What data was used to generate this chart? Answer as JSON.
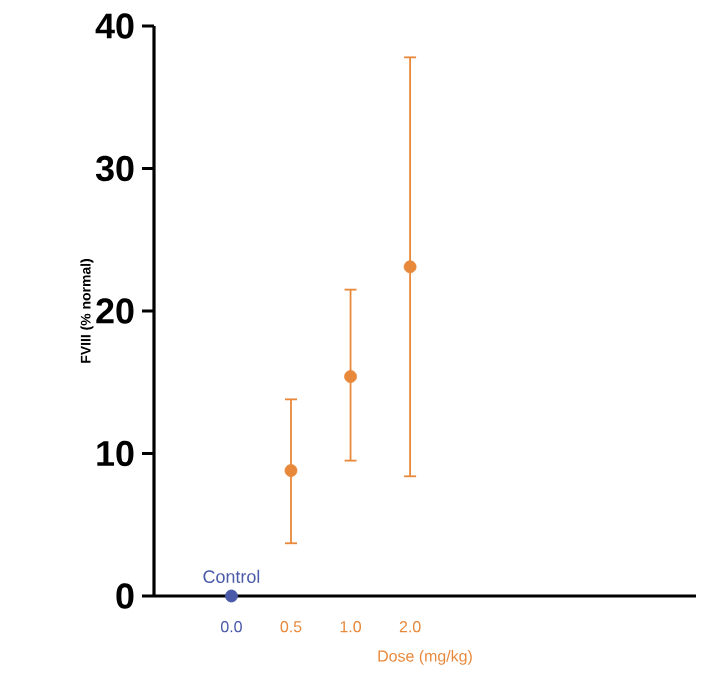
{
  "chart_data": {
    "type": "scatter",
    "ylabel": "FVIII (% normal)",
    "xlabel": "Dose (mg/kg)",
    "categories": [
      "0.0",
      "0.5",
      "1.0",
      "2.0"
    ],
    "series": [
      {
        "name": "Control",
        "color": "#4a5aa8",
        "values": [
          0,
          null,
          null,
          null
        ]
      },
      {
        "color": "#e8883a",
        "values": [
          null,
          8.8,
          15.4,
          23.1
        ],
        "errors": [
          null,
          [
            3.7,
            13.8
          ],
          [
            9.5,
            21.5
          ],
          [
            8.4,
            37.8
          ]
        ]
      }
    ],
    "ylim": [
      0,
      40
    ],
    "yticks": [
      0,
      10,
      20,
      30,
      40
    ],
    "marker": "circle"
  }
}
